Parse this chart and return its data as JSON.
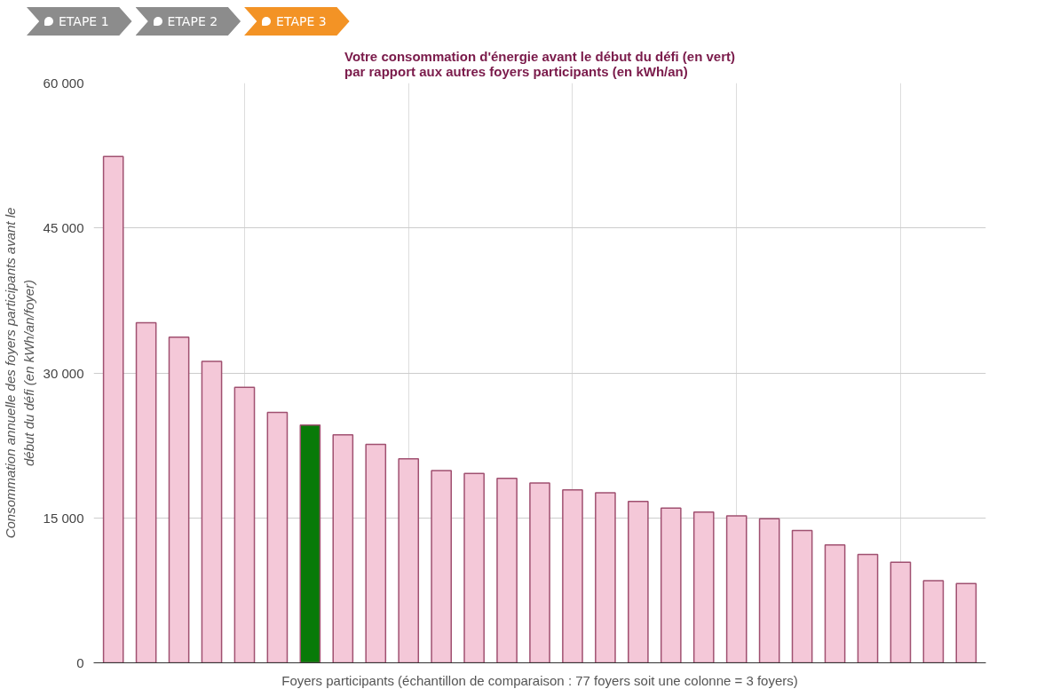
{
  "chart_data": {
    "type": "bar",
    "title": "Votre consommation d'énergie avant le début du défi (en vert)\npar rapport aux autres foyers participants (en kWh/an)",
    "xlabel": "Foyers participants (échantillon de comparaison : 77 foyers soit une colonne = 3 foyers)",
    "ylabel": "Consommation annuelle des foyers participants avant le\ndébut du défi (en kWh/an/foyer)",
    "annotations": [
      "ETAPE 1",
      "ETAPE 2",
      "ETAPE 3"
    ],
    "categories": [
      null,
      null,
      null,
      null,
      null,
      null,
      null,
      null,
      null,
      null,
      null,
      null,
      null,
      null,
      null,
      null,
      null,
      null,
      null,
      null,
      null,
      null,
      null,
      null,
      null,
      null,
      null
    ],
    "values": [
      52400,
      35200,
      33700,
      31200,
      28500,
      25900,
      24600,
      23600,
      22600,
      21100,
      19900,
      19600,
      19100,
      18600,
      17900,
      17600,
      16700,
      16000,
      15600,
      15200,
      14900,
      13700,
      12200,
      11200,
      10400,
      8500,
      8200
    ],
    "colors": [
      "#f4c8d8",
      "#f4c8d8",
      "#f4c8d8",
      "#f4c8d8",
      "#f4c8d8",
      "#f4c8d8",
      "#087a08",
      "#f4c8d8",
      "#f4c8d8",
      "#f4c8d8",
      "#f4c8d8",
      "#f4c8d8",
      "#f4c8d8",
      "#f4c8d8",
      "#f4c8d8",
      "#f4c8d8",
      "#f4c8d8",
      "#f4c8d8",
      "#f4c8d8",
      "#f4c8d8",
      "#f4c8d8",
      "#f4c8d8",
      "#f4c8d8",
      "#f4c8d8",
      "#f4c8d8",
      "#f4c8d8",
      "#f4c8d8"
    ],
    "ylim": [
      0,
      60000
    ],
    "yticks": [
      {
        "value": 0,
        "label": "0"
      },
      {
        "value": 15000,
        "label": "15 000"
      },
      {
        "value": 30000,
        "label": "30 000"
      },
      {
        "value": 45000,
        "label": "45 000"
      },
      {
        "value": 60000,
        "label": "60 000"
      }
    ],
    "grid": true,
    "tick_labels": "y"
  }
}
